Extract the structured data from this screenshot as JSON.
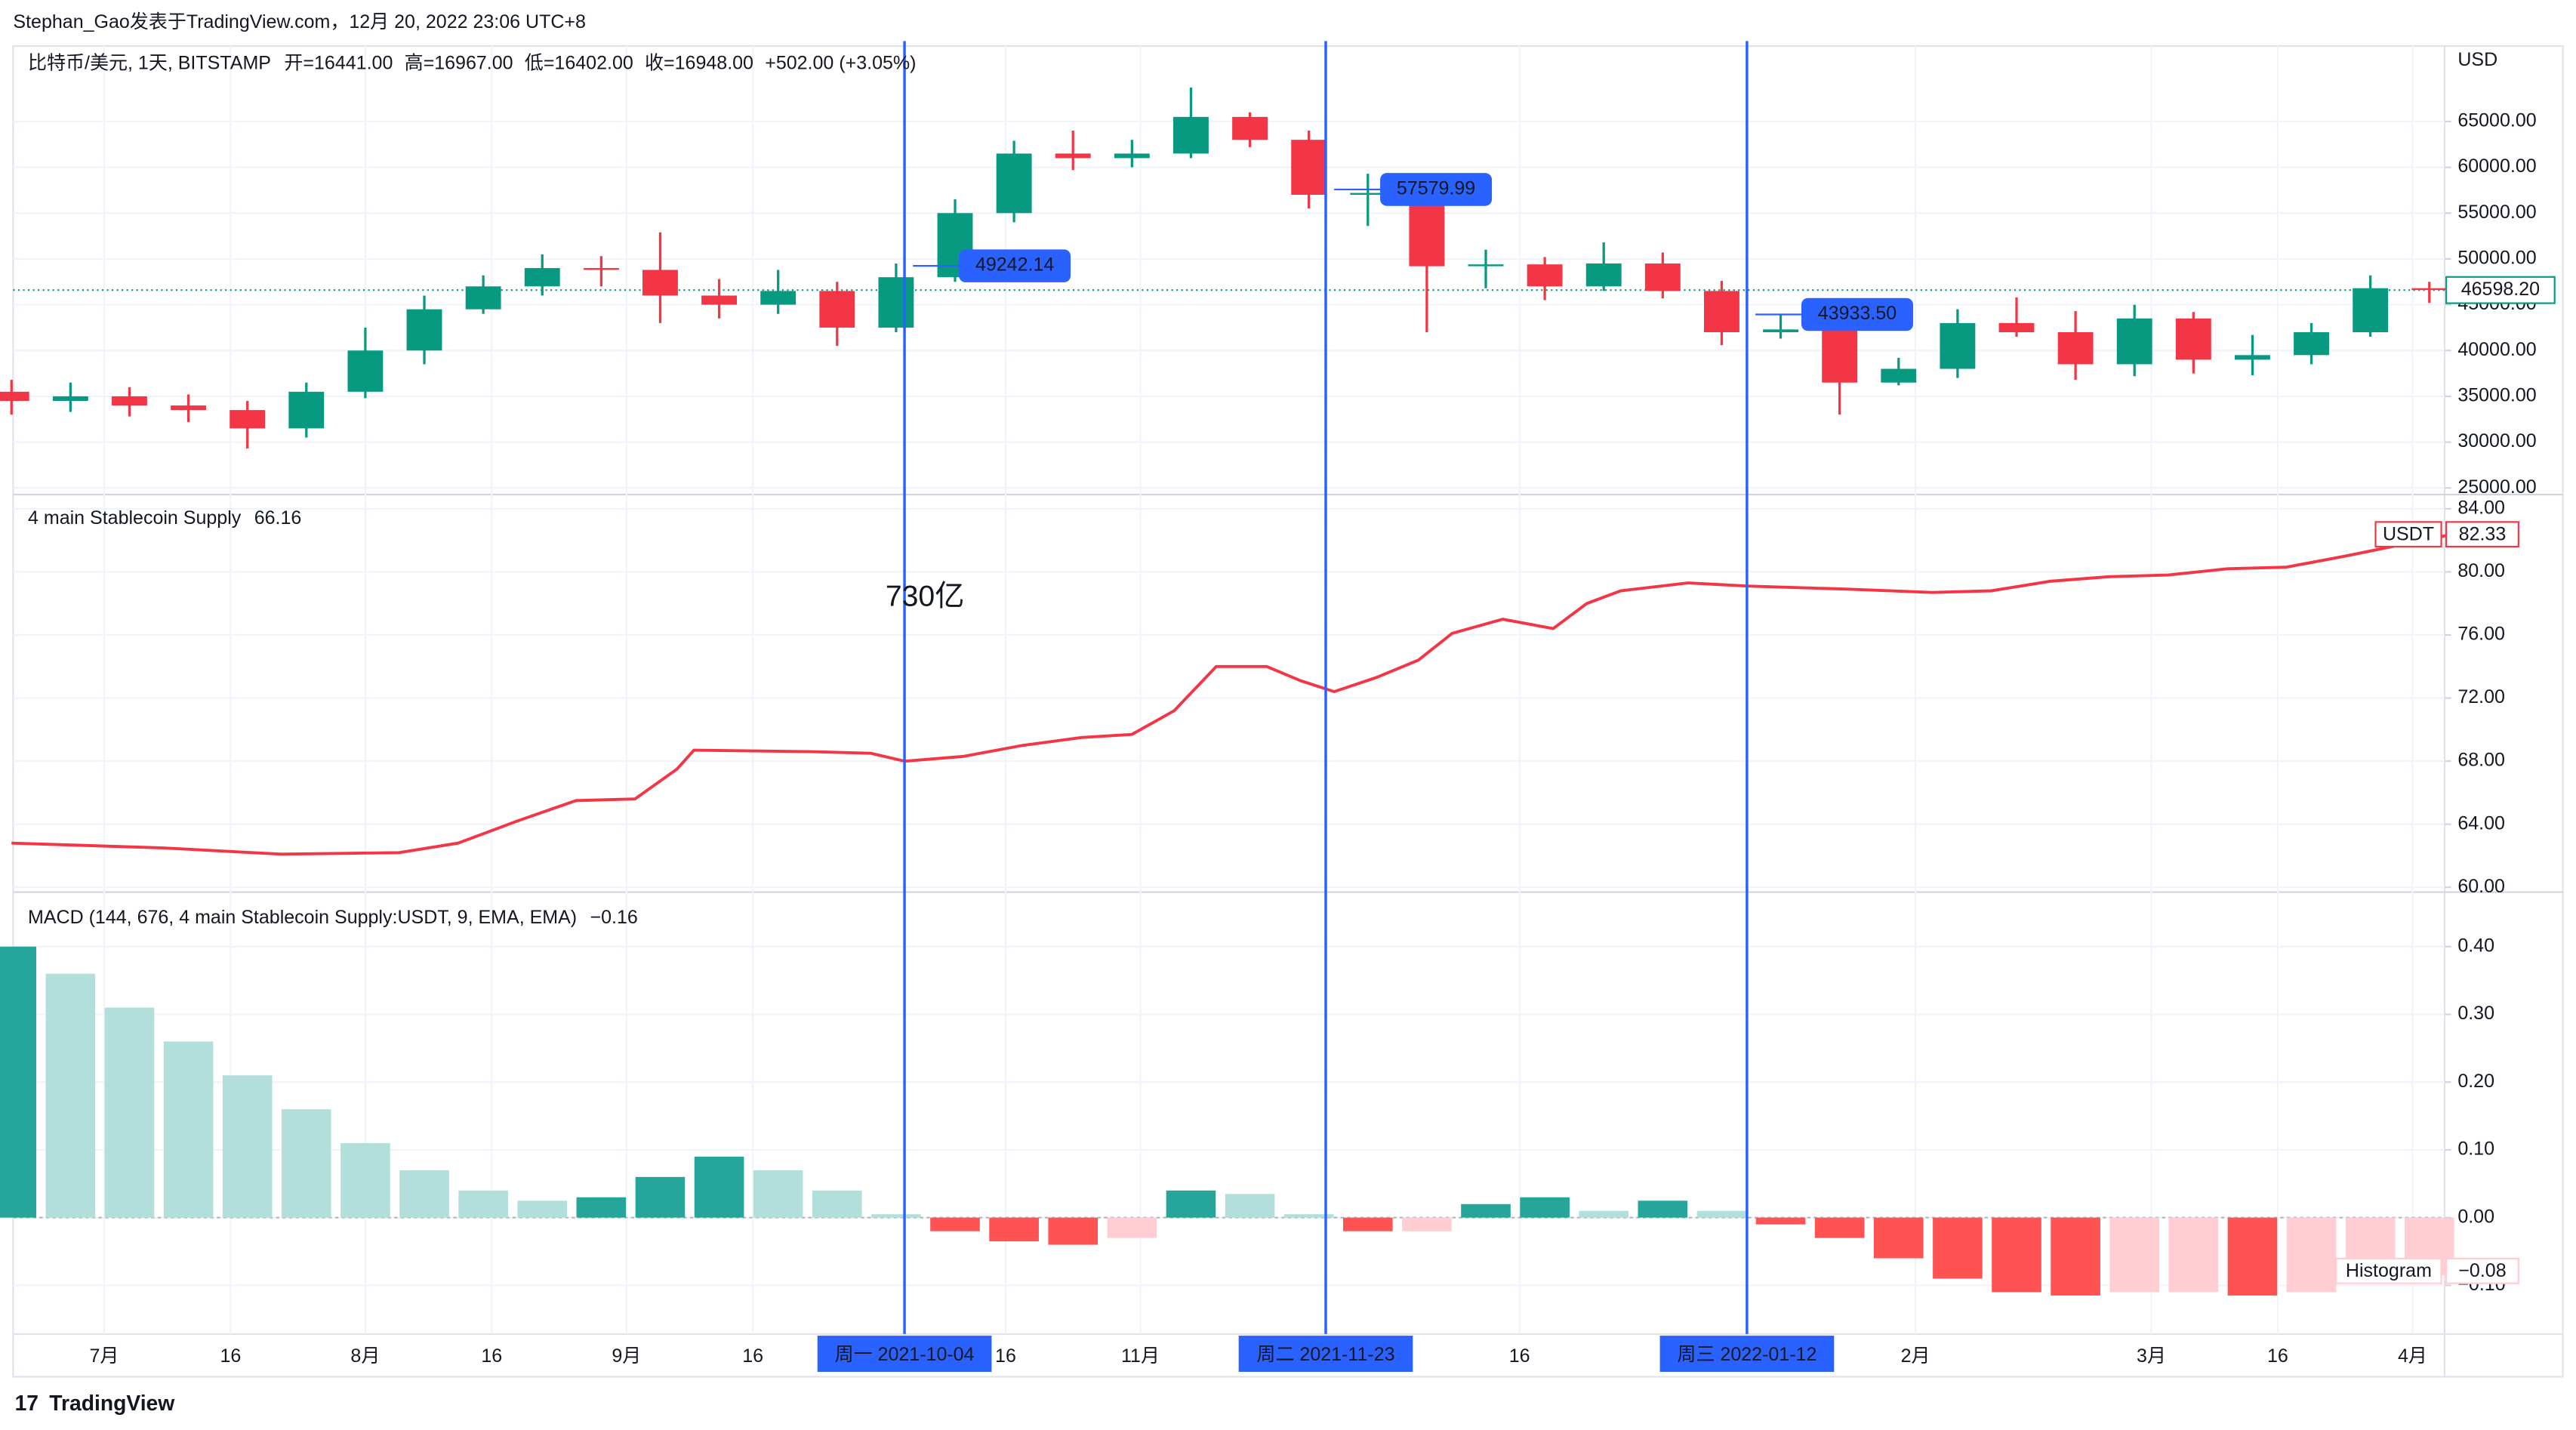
{
  "header": {
    "author_line": "Stephan_Gao发表于TradingView.com，12月 20, 2022 23:06 UTC+8"
  },
  "x_axis": {
    "xlim": [
      "2021-06-20",
      "2022-04-05"
    ],
    "xticks": [
      {
        "value": "2021-07-01",
        "label": "7月"
      },
      {
        "value": "2021-07-16",
        "label": "16"
      },
      {
        "value": "2021-08-01",
        "label": "8月"
      },
      {
        "value": "2021-08-16",
        "label": "16"
      },
      {
        "value": "2021-09-01",
        "label": "9月"
      },
      {
        "value": "2021-09-16",
        "label": "16"
      },
      {
        "value": "2021-10-16",
        "label": "16"
      },
      {
        "value": "2021-11-01",
        "label": "11月"
      },
      {
        "value": "2021-12-16",
        "label": "16"
      },
      {
        "value": "2022-02-01",
        "label": "2月"
      },
      {
        "value": "2022-03-01",
        "label": "3月"
      },
      {
        "value": "2022-03-16",
        "label": "16"
      },
      {
        "value": "2022-04-01",
        "label": "4月"
      }
    ],
    "markers": [
      {
        "value": "2021-10-04",
        "label": "周一 2021-10-04"
      },
      {
        "value": "2021-11-23",
        "label": "周二 2021-11-23"
      },
      {
        "value": "2022-01-12",
        "label": "周三 2022-01-12"
      }
    ],
    "marker_color": "#2962ff"
  },
  "chart_data": [
    {
      "type": "candlestick",
      "symbol": "比特币/美元, 1天, BITSTAMP",
      "ohlc_labels": [
        "开=16441.00",
        "高=16967.00",
        "低=16402.00",
        "收=16948.00",
        "+502.00 (+3.05%)"
      ],
      "currency": "USD",
      "up_color": "#089981",
      "down_color": "#f23645",
      "grid": true,
      "x": [
        "2021-06-20",
        "2021-06-27",
        "2021-07-04",
        "2021-07-11",
        "2021-07-18",
        "2021-07-25",
        "2021-08-01",
        "2021-08-08",
        "2021-08-15",
        "2021-08-22",
        "2021-08-29",
        "2021-09-05",
        "2021-09-12",
        "2021-09-19",
        "2021-09-26",
        "2021-10-03",
        "2021-10-10",
        "2021-10-17",
        "2021-10-24",
        "2021-10-31",
        "2021-11-07",
        "2021-11-14",
        "2021-11-21",
        "2021-11-28",
        "2021-12-05",
        "2021-12-12",
        "2021-12-19",
        "2021-12-26",
        "2022-01-02",
        "2022-01-09",
        "2022-01-16",
        "2022-01-23",
        "2022-01-30",
        "2022-02-06",
        "2022-02-13",
        "2022-02-20",
        "2022-02-27",
        "2022-03-06",
        "2022-03-13",
        "2022-03-20",
        "2022-03-27",
        "2022-04-03"
      ],
      "open": [
        35500,
        34500,
        35000,
        34000,
        33500,
        31500,
        35500,
        40000,
        44500,
        47000,
        49000,
        48800,
        46000,
        45000,
        46500,
        42500,
        48000,
        55000,
        61500,
        61000,
        61500,
        65500,
        63000,
        57000,
        57200,
        49200,
        49400,
        47000,
        49500,
        46500,
        42000,
        42300,
        36500,
        38000,
        43000,
        42000,
        38500,
        43500,
        39000,
        39500,
        42000,
        46800
      ],
      "high": [
        36800,
        36500,
        36000,
        35200,
        34500,
        36500,
        42500,
        46000,
        48200,
        50500,
        50300,
        52900,
        47800,
        48800,
        47500,
        49500,
        56500,
        62900,
        64000,
        63000,
        68700,
        66000,
        64000,
        59300,
        58000,
        51000,
        50200,
        51800,
        50700,
        47600,
        44000,
        43500,
        39200,
        44500,
        45800,
        44300,
        45000,
        44200,
        41700,
        43000,
        48200,
        47500
      ],
      "low": [
        33000,
        33300,
        32800,
        32200,
        29300,
        30500,
        34800,
        38500,
        44000,
        46000,
        47000,
        43000,
        43500,
        44000,
        40500,
        42000,
        47500,
        54000,
        59700,
        60000,
        61000,
        62200,
        55500,
        53600,
        42000,
        46800,
        45500,
        46500,
        45700,
        40600,
        41300,
        33000,
        36200,
        37000,
        41500,
        36800,
        37200,
        37500,
        37300,
        38500,
        41500,
        45200
      ],
      "close": [
        34500,
        35000,
        34000,
        33500,
        31500,
        35500,
        40000,
        44500,
        47000,
        49000,
        48800,
        46000,
        45000,
        46500,
        42500,
        48000,
        55000,
        61500,
        61000,
        61500,
        65500,
        63000,
        57000,
        57200,
        49200,
        49400,
        47000,
        49500,
        46500,
        42000,
        42300,
        36500,
        38000,
        43000,
        42000,
        38500,
        43500,
        39000,
        39500,
        42000,
        46800,
        46600
      ],
      "ylim": [
        24460,
        73240
      ],
      "yticks": [
        {
          "value": 25000,
          "label": "25000.00"
        },
        {
          "value": 30000,
          "label": "30000.00"
        },
        {
          "value": 35000,
          "label": "35000.00"
        },
        {
          "value": 40000,
          "label": "40000.00"
        },
        {
          "value": 45000,
          "label": "45000.00"
        },
        {
          "value": 50000,
          "label": "50000.00"
        },
        {
          "value": 55000,
          "label": "55000.00"
        },
        {
          "value": 60000,
          "label": "60000.00"
        },
        {
          "value": 65000,
          "label": "65000.00"
        }
      ],
      "last_price": {
        "value": 46598.2,
        "label": "46598.20"
      },
      "callouts": {
        "x": [
          "2021-10-05",
          "2021-11-24",
          "2022-01-13"
        ],
        "values": [
          49242.14,
          57579.99,
          43933.5
        ],
        "value_labels": [
          "49242.14",
          "57579.99",
          "43933.50"
        ]
      }
    },
    {
      "type": "line",
      "title": "4 main Stablecoin Supply",
      "legend_value": 66.16,
      "annotation": "730亿",
      "grid": true,
      "x": [
        "2021-06-20",
        "2021-07-08",
        "2021-07-22",
        "2021-08-05",
        "2021-08-12",
        "2021-08-19",
        "2021-08-26",
        "2021-09-02",
        "2021-09-07",
        "2021-09-09",
        "2021-09-23",
        "2021-09-30",
        "2021-10-04",
        "2021-10-11",
        "2021-10-18",
        "2021-10-25",
        "2021-10-31",
        "2021-11-05",
        "2021-11-10",
        "2021-11-16",
        "2021-11-20",
        "2021-11-24",
        "2021-11-29",
        "2021-12-04",
        "2021-12-08",
        "2021-12-14",
        "2021-12-20",
        "2021-12-24",
        "2021-12-28",
        "2022-01-05",
        "2022-01-12",
        "2022-01-24",
        "2022-02-03",
        "2022-02-10",
        "2022-02-17",
        "2022-02-24",
        "2022-03-03",
        "2022-03-10",
        "2022-03-17",
        "2022-03-24",
        "2022-04-05"
      ],
      "series": [
        {
          "name": "USDT",
          "color": "#f23645",
          "values": [
            62.8,
            62.5,
            62.1,
            62.2,
            62.8,
            64.2,
            65.5,
            65.6,
            67.5,
            68.7,
            68.6,
            68.5,
            68.0,
            68.3,
            69.0,
            69.5,
            69.7,
            71.2,
            74.0,
            74.0,
            73.1,
            72.4,
            73.3,
            74.4,
            76.1,
            77.0,
            76.4,
            78.0,
            78.8,
            79.3,
            79.1,
            78.9,
            78.7,
            78.8,
            79.4,
            79.7,
            79.8,
            80.2,
            80.3,
            81.0,
            82.3
          ]
        }
      ],
      "last_value": 82.33,
      "ylim": [
        59.8,
        84.8
      ],
      "yticks": [
        {
          "value": 60,
          "label": "60.00"
        },
        {
          "value": 64,
          "label": "64.00"
        },
        {
          "value": 68,
          "label": "68.00"
        },
        {
          "value": 72,
          "label": "72.00"
        },
        {
          "value": 76,
          "label": "76.00"
        },
        {
          "value": 80,
          "label": "80.00"
        },
        {
          "value": 84,
          "label": "84.00"
        }
      ]
    },
    {
      "type": "histogram",
      "title": "MACD (144, 676, 4 main Stablecoin Supply:USDT, 9, EMA, EMA)",
      "legend_value": {
        "value": -0.16,
        "label": "−0.16"
      },
      "grid": true,
      "x": [
        "2021-06-20",
        "2021-06-27",
        "2021-07-04",
        "2021-07-11",
        "2021-07-18",
        "2021-07-25",
        "2021-08-01",
        "2021-08-08",
        "2021-08-15",
        "2021-08-22",
        "2021-08-29",
        "2021-09-05",
        "2021-09-12",
        "2021-09-19",
        "2021-09-26",
        "2021-10-03",
        "2021-10-10",
        "2021-10-17",
        "2021-10-24",
        "2021-10-31",
        "2021-11-07",
        "2021-11-14",
        "2021-11-21",
        "2021-11-28",
        "2021-12-05",
        "2021-12-12",
        "2021-12-19",
        "2021-12-26",
        "2022-01-02",
        "2022-01-09",
        "2022-01-16",
        "2022-01-23",
        "2022-01-30",
        "2022-02-06",
        "2022-02-13",
        "2022-02-20",
        "2022-02-27",
        "2022-03-06",
        "2022-03-13",
        "2022-03-20",
        "2022-03-27",
        "2022-04-03"
      ],
      "series": [
        {
          "name": "Histogram",
          "values": [
            0.4,
            0.36,
            0.31,
            0.26,
            0.21,
            0.16,
            0.11,
            0.07,
            0.04,
            0.025,
            0.03,
            0.06,
            0.09,
            0.07,
            0.04,
            0.005,
            -0.02,
            -0.035,
            -0.04,
            -0.03,
            0.04,
            0.035,
            0.005,
            -0.02,
            -0.02,
            0.02,
            0.03,
            0.01,
            0.025,
            0.01,
            -0.01,
            -0.03,
            -0.06,
            -0.09,
            -0.11,
            -0.115,
            -0.11,
            -0.11,
            -0.115,
            -0.11,
            -0.095,
            -0.085
          ]
        }
      ],
      "colors": {
        "positive_rising": "#26a69a",
        "positive_falling": "#b2dfdb",
        "negative_falling": "#ff5252",
        "negative_rising": "#ffcdd2"
      },
      "last_value": {
        "value": -0.08,
        "label": "−0.08"
      },
      "ylim": [
        -0.167,
        0.478
      ],
      "yticks": [
        {
          "value": -0.1,
          "label": "−0.10"
        },
        {
          "value": 0,
          "label": "0.00"
        },
        {
          "value": 0.1,
          "label": "0.10"
        },
        {
          "value": 0.2,
          "label": "0.20"
        },
        {
          "value": 0.3,
          "label": "0.30"
        },
        {
          "value": 0.4,
          "label": "0.40"
        }
      ]
    }
  ],
  "footer": {
    "brand": "TradingView"
  }
}
